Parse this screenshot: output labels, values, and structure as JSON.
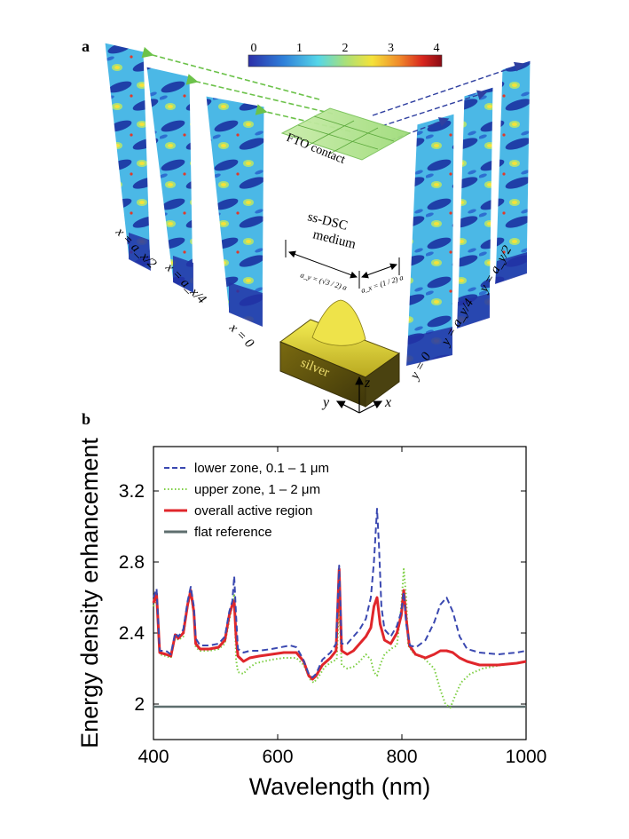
{
  "panel_a": {
    "label": "a",
    "colorbar": {
      "ticks": [
        "0",
        "1",
        "2",
        "3",
        "4"
      ],
      "colors": [
        "#2b2fa8",
        "#2f7fd9",
        "#55d6e8",
        "#a8e07a",
        "#f5e23a",
        "#f08a2a",
        "#d8261e",
        "#8a0b14"
      ]
    },
    "fto_label": "FTO contact",
    "medium_label_line1": "ss-DSC",
    "medium_label_line2": "medium",
    "ay_label": "a_y = (√3 / 2) a",
    "ax_label": "a_x = (1 / 2) a",
    "silver_label": "silver",
    "axes": {
      "x": "x",
      "y": "y",
      "z": "z"
    },
    "left_slices": [
      "x = a_x/2",
      "x = a_x/4",
      "x = 0"
    ],
    "right_slices": [
      "y = 0",
      "y = a_y/4",
      "y = a_y/2"
    ]
  },
  "panel_b": {
    "label": "b",
    "chart_data": {
      "type": "line",
      "title": "",
      "xlabel": "Wavelength (nm)",
      "ylabel": "Energy density enhancement",
      "xlim": [
        400,
        1000
      ],
      "ylim": [
        1.8,
        3.45
      ],
      "xticks": [
        400,
        600,
        800,
        1000
      ],
      "yticks": [
        2.0,
        2.4,
        2.8,
        3.2
      ],
      "xtick_labels": [
        "400",
        "600",
        "800",
        "1000"
      ],
      "ytick_labels": [
        "2",
        "2.4",
        "2.8",
        "3.2"
      ],
      "legend_position": "top-left",
      "series": [
        {
          "name": "lower zone, 0.1 – 1 μm",
          "color": "#3a48b0",
          "style": "dashed",
          "points": [
            [
              400,
              2.6
            ],
            [
              405,
              2.65
            ],
            [
              410,
              2.3
            ],
            [
              420,
              2.3
            ],
            [
              428,
              2.28
            ],
            [
              435,
              2.4
            ],
            [
              440,
              2.38
            ],
            [
              448,
              2.42
            ],
            [
              455,
              2.58
            ],
            [
              460,
              2.66
            ],
            [
              465,
              2.55
            ],
            [
              468,
              2.37
            ],
            [
              475,
              2.33
            ],
            [
              490,
              2.33
            ],
            [
              505,
              2.34
            ],
            [
              515,
              2.38
            ],
            [
              522,
              2.52
            ],
            [
              527,
              2.58
            ],
            [
              530,
              2.72
            ],
            [
              533,
              2.5
            ],
            [
              536,
              2.31
            ],
            [
              545,
              2.29
            ],
            [
              555,
              2.3
            ],
            [
              570,
              2.3
            ],
            [
              590,
              2.31
            ],
            [
              605,
              2.32
            ],
            [
              620,
              2.33
            ],
            [
              630,
              2.32
            ],
            [
              640,
              2.26
            ],
            [
              650,
              2.17
            ],
            [
              656,
              2.15
            ],
            [
              662,
              2.17
            ],
            [
              672,
              2.25
            ],
            [
              685,
              2.29
            ],
            [
              694,
              2.34
            ],
            [
              699,
              2.78
            ],
            [
              703,
              2.34
            ],
            [
              712,
              2.34
            ],
            [
              722,
              2.38
            ],
            [
              732,
              2.42
            ],
            [
              742,
              2.48
            ],
            [
              750,
              2.6
            ],
            [
              755,
              2.8
            ],
            [
              760,
              3.1
            ],
            [
              763,
              2.9
            ],
            [
              767,
              2.55
            ],
            [
              772,
              2.42
            ],
            [
              782,
              2.38
            ],
            [
              792,
              2.44
            ],
            [
              799,
              2.52
            ],
            [
              803,
              2.63
            ],
            [
              807,
              2.45
            ],
            [
              813,
              2.33
            ],
            [
              823,
              2.32
            ],
            [
              838,
              2.36
            ],
            [
              852,
              2.46
            ],
            [
              862,
              2.56
            ],
            [
              872,
              2.6
            ],
            [
              882,
              2.52
            ],
            [
              893,
              2.38
            ],
            [
              905,
              2.31
            ],
            [
              925,
              2.29
            ],
            [
              955,
              2.28
            ],
            [
              985,
              2.29
            ],
            [
              1000,
              2.3
            ]
          ]
        },
        {
          "name": "upper zone, 1 – 2 μm",
          "color": "#7dcf43",
          "style": "dotted",
          "points": [
            [
              400,
              2.55
            ],
            [
              405,
              2.6
            ],
            [
              410,
              2.28
            ],
            [
              420,
              2.27
            ],
            [
              428,
              2.26
            ],
            [
              435,
              2.38
            ],
            [
              440,
              2.36
            ],
            [
              448,
              2.38
            ],
            [
              455,
              2.55
            ],
            [
              460,
              2.62
            ],
            [
              465,
              2.5
            ],
            [
              468,
              2.32
            ],
            [
              475,
              2.3
            ],
            [
              490,
              2.3
            ],
            [
              505,
              2.31
            ],
            [
              515,
              2.34
            ],
            [
              522,
              2.47
            ],
            [
              527,
              2.56
            ],
            [
              530,
              2.62
            ],
            [
              533,
              2.25
            ],
            [
              536,
              2.18
            ],
            [
              545,
              2.17
            ],
            [
              552,
              2.2
            ],
            [
              565,
              2.23
            ],
            [
              590,
              2.25
            ],
            [
              610,
              2.26
            ],
            [
              630,
              2.26
            ],
            [
              642,
              2.22
            ],
            [
              652,
              2.14
            ],
            [
              658,
              2.12
            ],
            [
              665,
              2.15
            ],
            [
              676,
              2.21
            ],
            [
              688,
              2.24
            ],
            [
              695,
              2.25
            ],
            [
              699,
              2.55
            ],
            [
              703,
              2.22
            ],
            [
              712,
              2.2
            ],
            [
              722,
              2.21
            ],
            [
              732,
              2.24
            ],
            [
              742,
              2.28
            ],
            [
              750,
              2.25
            ],
            [
              755,
              2.18
            ],
            [
              760,
              2.16
            ],
            [
              765,
              2.22
            ],
            [
              772,
              2.28
            ],
            [
              782,
              2.31
            ],
            [
              792,
              2.33
            ],
            [
              799,
              2.55
            ],
            [
              803,
              2.76
            ],
            [
              807,
              2.6
            ],
            [
              810,
              2.33
            ],
            [
              820,
              2.28
            ],
            [
              835,
              2.26
            ],
            [
              852,
              2.2
            ],
            [
              862,
              2.08
            ],
            [
              870,
              2.0
            ],
            [
              878,
              1.98
            ],
            [
              885,
              2.04
            ],
            [
              895,
              2.12
            ],
            [
              910,
              2.17
            ],
            [
              930,
              2.2
            ],
            [
              960,
              2.22
            ],
            [
              985,
              2.23
            ],
            [
              1000,
              2.24
            ]
          ]
        },
        {
          "name": "overall active region",
          "color": "#e0262b",
          "style": "solid",
          "points": [
            [
              400,
              2.57
            ],
            [
              405,
              2.62
            ],
            [
              410,
              2.29
            ],
            [
              420,
              2.28
            ],
            [
              428,
              2.27
            ],
            [
              435,
              2.39
            ],
            [
              440,
              2.37
            ],
            [
              448,
              2.4
            ],
            [
              455,
              2.56
            ],
            [
              460,
              2.64
            ],
            [
              465,
              2.52
            ],
            [
              468,
              2.34
            ],
            [
              475,
              2.31
            ],
            [
              490,
              2.31
            ],
            [
              505,
              2.32
            ],
            [
              515,
              2.36
            ],
            [
              522,
              2.5
            ],
            [
              527,
              2.56
            ],
            [
              530,
              2.58
            ],
            [
              533,
              2.38
            ],
            [
              536,
              2.27
            ],
            [
              545,
              2.24
            ],
            [
              555,
              2.26
            ],
            [
              570,
              2.27
            ],
            [
              590,
              2.28
            ],
            [
              610,
              2.29
            ],
            [
              630,
              2.29
            ],
            [
              642,
              2.24
            ],
            [
              650,
              2.16
            ],
            [
              656,
              2.14
            ],
            [
              662,
              2.16
            ],
            [
              672,
              2.22
            ],
            [
              685,
              2.26
            ],
            [
              694,
              2.3
            ],
            [
              699,
              2.76
            ],
            [
              703,
              2.3
            ],
            [
              712,
              2.28
            ],
            [
              722,
              2.3
            ],
            [
              732,
              2.34
            ],
            [
              742,
              2.38
            ],
            [
              750,
              2.43
            ],
            [
              755,
              2.55
            ],
            [
              760,
              2.6
            ],
            [
              765,
              2.45
            ],
            [
              772,
              2.36
            ],
            [
              782,
              2.34
            ],
            [
              792,
              2.4
            ],
            [
              799,
              2.5
            ],
            [
              803,
              2.64
            ],
            [
              807,
              2.48
            ],
            [
              812,
              2.33
            ],
            [
              822,
              2.28
            ],
            [
              838,
              2.26
            ],
            [
              852,
              2.28
            ],
            [
              862,
              2.3
            ],
            [
              872,
              2.3
            ],
            [
              882,
              2.29
            ],
            [
              893,
              2.26
            ],
            [
              905,
              2.24
            ],
            [
              925,
              2.22
            ],
            [
              955,
              2.22
            ],
            [
              985,
              2.23
            ],
            [
              1000,
              2.24
            ]
          ]
        },
        {
          "name": "flat reference",
          "color": "#5e6e6e",
          "style": "solid",
          "points": [
            [
              400,
              1.985
            ],
            [
              500,
              1.985
            ],
            [
              600,
              1.985
            ],
            [
              700,
              1.985
            ],
            [
              800,
              1.985
            ],
            [
              900,
              1.985
            ],
            [
              1000,
              1.985
            ]
          ]
        }
      ]
    }
  }
}
